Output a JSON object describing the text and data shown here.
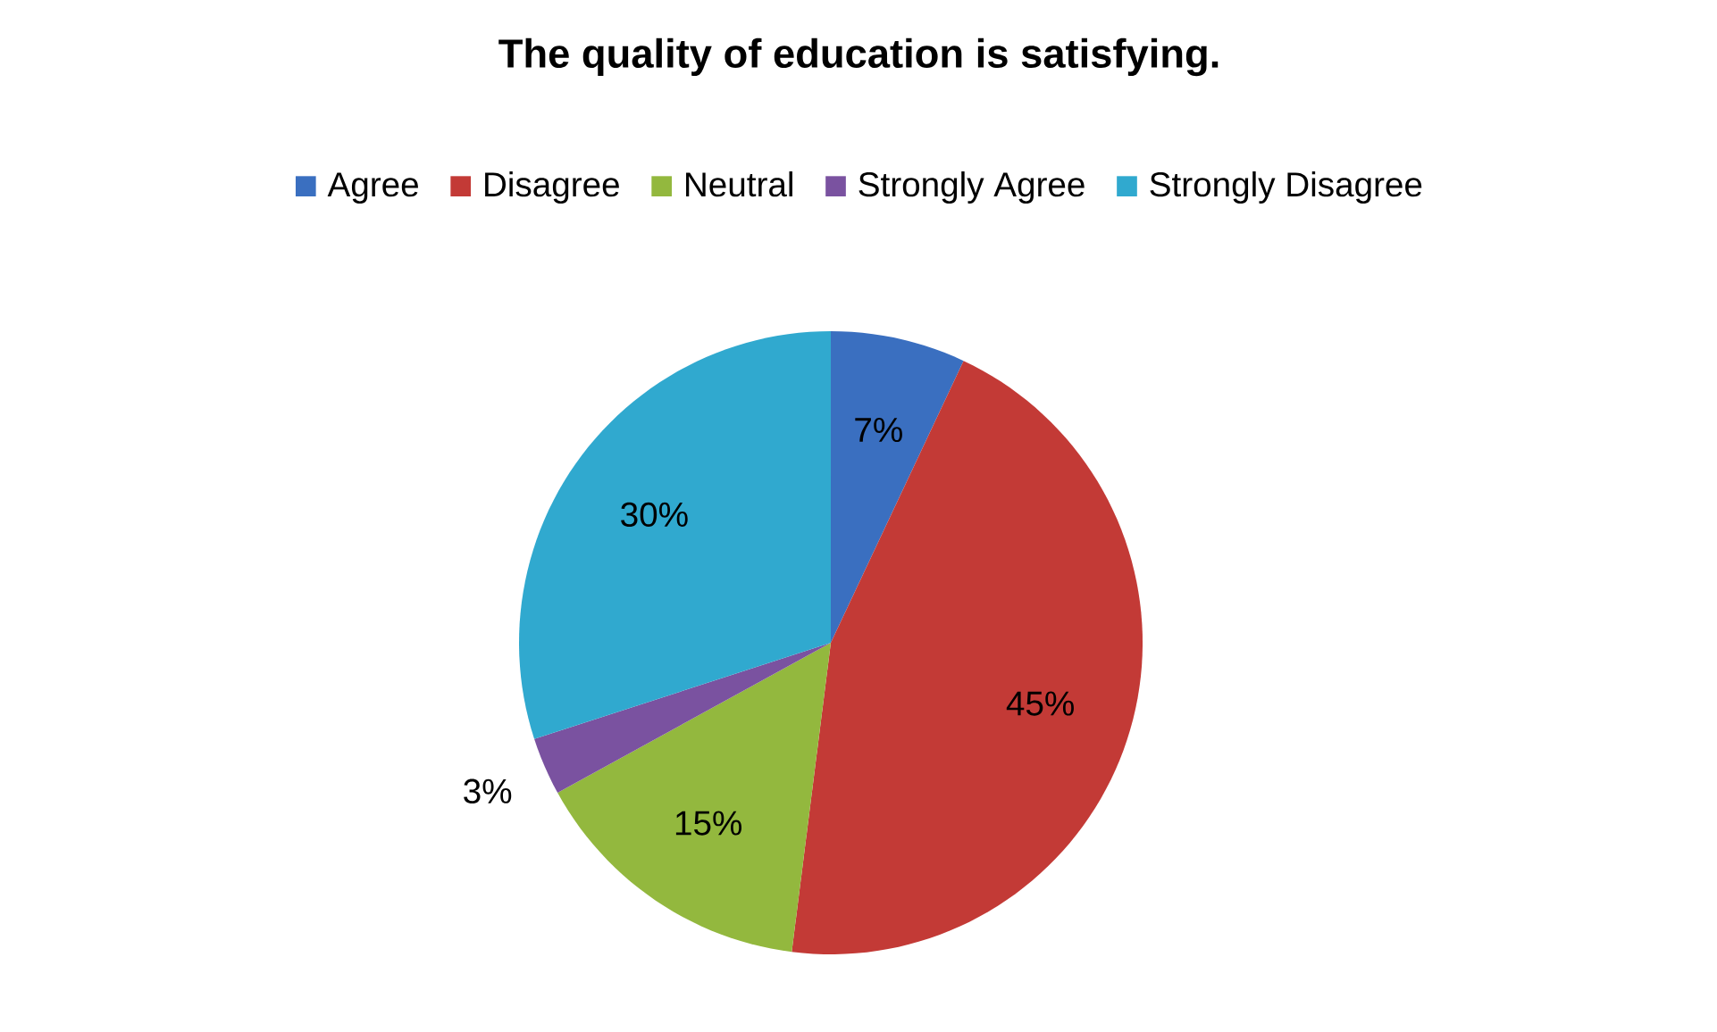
{
  "chart_data": {
    "type": "pie",
    "title": "The quality of education is satisfying.",
    "categories": [
      "Agree",
      "Disagree",
      "Neutral",
      "Strongly Agree",
      "Strongly Disagree"
    ],
    "values": [
      7,
      45,
      15,
      3,
      30
    ],
    "colors": [
      "#3a6fc0",
      "#c33a36",
      "#93b83e",
      "#7a52a0",
      "#30a9cf"
    ],
    "value_labels": [
      "7%",
      "45%",
      "15%",
      "3%",
      "30%"
    ],
    "legend": "top"
  }
}
